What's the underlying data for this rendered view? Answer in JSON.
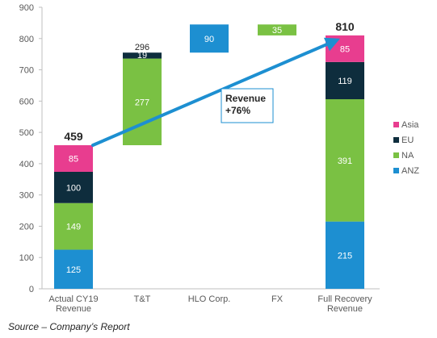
{
  "chart_data": {
    "type": "bar",
    "subtype": "stacked-waterfall",
    "ylim": [
      0,
      900
    ],
    "yticks": [
      0,
      100,
      200,
      300,
      400,
      500,
      600,
      700,
      800,
      900
    ],
    "grid": false,
    "legend_position": "right",
    "categories": [
      "Actual CY19 Revenue",
      "T&T",
      "HLO Corp.",
      "FX",
      "Full Recovery Revenue"
    ],
    "category_lines": [
      [
        "Actual CY19",
        "Revenue"
      ],
      [
        "T&T"
      ],
      [
        "HLO Corp."
      ],
      [
        "FX"
      ],
      [
        "Full Recovery",
        "Revenue"
      ]
    ],
    "series": [
      {
        "name": "ANZ",
        "color": "#1d8fd1",
        "values": [
          125,
          null,
          null,
          null,
          215
        ]
      },
      {
        "name": "NA",
        "color": "#7ac143",
        "values": [
          149,
          null,
          null,
          null,
          391
        ]
      },
      {
        "name": "EU",
        "color": "#0e2d3d",
        "values": [
          100,
          null,
          null,
          null,
          119
        ]
      },
      {
        "name": "Asia",
        "color": "#e83d8f",
        "values": [
          85,
          null,
          null,
          null,
          85
        ]
      }
    ],
    "legend_order": [
      "Asia",
      "EU",
      "NA",
      "ANZ"
    ],
    "waterfall_steps": [
      {
        "category": "T&T",
        "segments": [
          {
            "value": 277,
            "base": 459,
            "color": "#7ac143",
            "label": "277",
            "label_style": "light"
          },
          {
            "value": 19,
            "base": 736,
            "color": "#0e2d3d",
            "label": "19",
            "label_style": "light"
          }
        ],
        "total_label": "296"
      },
      {
        "category": "HLO Corp.",
        "segments": [
          {
            "value": 90,
            "base": 755,
            "color": "#1d8fd1",
            "label": "90",
            "label_style": "light"
          }
        ]
      },
      {
        "category": "FX",
        "segments": [
          {
            "value": 35,
            "base": 810,
            "color": "#7ac143",
            "label": "35",
            "label_style": "light"
          }
        ]
      }
    ],
    "totals": [
      {
        "category": "Actual CY19 Revenue",
        "value": 459,
        "label": "459"
      },
      {
        "category": "Full Recovery Revenue",
        "value": 810,
        "label": "810"
      }
    ],
    "annotation": {
      "lines": [
        "Revenue",
        "+76%"
      ],
      "arrow_from": [
        0,
        459
      ],
      "arrow_to": [
        4,
        810
      ],
      "arrow_color": "#1d8fd1"
    }
  },
  "source": "Source – Company’s Report"
}
